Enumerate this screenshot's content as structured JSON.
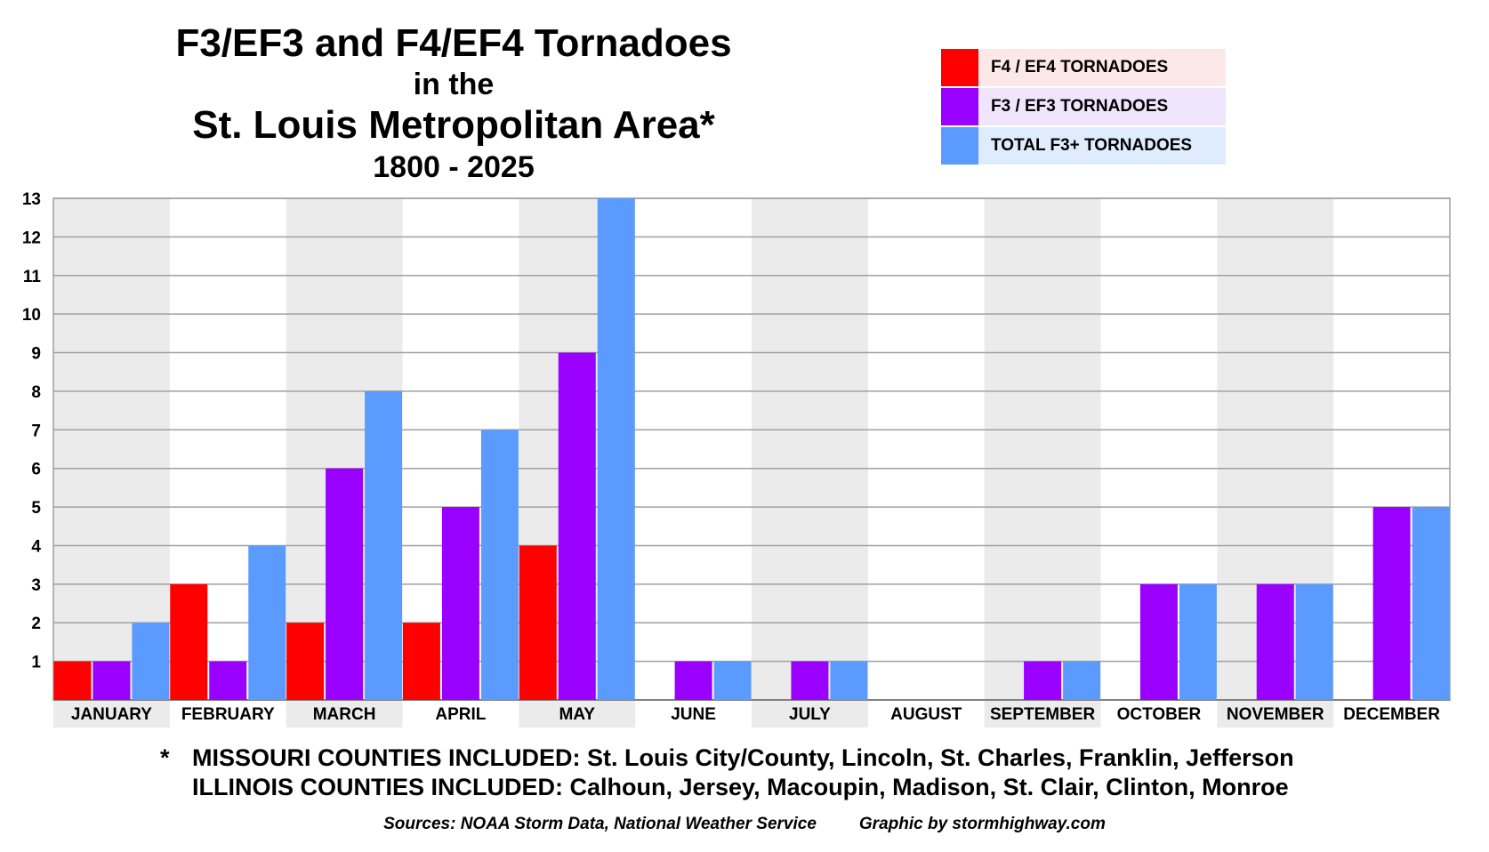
{
  "title": {
    "line1": "F3/EF3 and F4/EF4 Tornadoes",
    "line2": "in the",
    "line3": "St. Louis Metropolitan Area*",
    "line4": "1800 - 2025"
  },
  "legend": [
    {
      "label": "F4 / EF4 TORNADOES",
      "color": "#ff0000",
      "bg": "#fde8e8"
    },
    {
      "label": "F3 / EF3 TORNADOES",
      "color": "#9900ff",
      "bg": "#f1e4fd"
    },
    {
      "label": "TOTAL F3+ TORNADOES",
      "color": "#5b9bff",
      "bg": "#dfecfd"
    }
  ],
  "chart_data": {
    "type": "bar",
    "title": "F3/EF3 and F4/EF4 Tornadoes in the St. Louis Metropolitan Area* 1800 - 2025",
    "xlabel": "",
    "ylabel": "",
    "ylim": [
      0,
      13
    ],
    "yticks": [
      1,
      2,
      3,
      4,
      5,
      6,
      7,
      8,
      9,
      10,
      11,
      12,
      13
    ],
    "grid": true,
    "legend_position": "top-right",
    "categories": [
      "JANUARY",
      "FEBRUARY",
      "MARCH",
      "APRIL",
      "MAY",
      "JUNE",
      "JULY",
      "AUGUST",
      "SEPTEMBER",
      "OCTOBER",
      "NOVEMBER",
      "DECEMBER"
    ],
    "series": [
      {
        "name": "F4 / EF4 TORNADOES",
        "color": "#ff0000",
        "values": [
          1,
          3,
          2,
          2,
          4,
          0,
          0,
          0,
          0,
          0,
          0,
          0
        ]
      },
      {
        "name": "F3 / EF3 TORNADOES",
        "color": "#9900ff",
        "values": [
          1,
          1,
          6,
          5,
          9,
          1,
          1,
          0,
          1,
          3,
          3,
          5
        ]
      },
      {
        "name": "TOTAL F3+ TORNADOES",
        "color": "#5b9bff",
        "values": [
          2,
          4,
          8,
          7,
          13,
          1,
          1,
          0,
          1,
          3,
          3,
          5
        ]
      }
    ],
    "band_color": "#ebebeb",
    "grid_color": "#a0a0a0"
  },
  "footnote": {
    "star": "*",
    "missouri": "MISSOURI COUNTIES INCLUDED: St. Louis City/County, Lincoln, St. Charles, Franklin, Jefferson",
    "illinois": "ILLINOIS COUNTIES INCLUDED: Calhoun, Jersey, Macoupin, Madison, St. Clair, Clinton, Monroe"
  },
  "sources": {
    "text": "Sources: NOAA Storm Data, National Weather Service",
    "credit": "Graphic by stormhighway.com"
  }
}
